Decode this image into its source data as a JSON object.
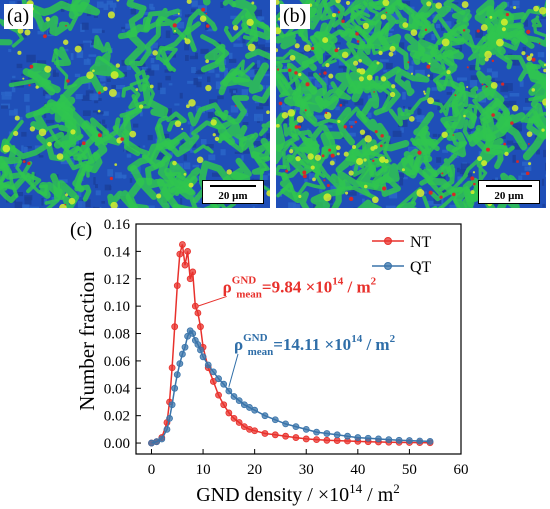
{
  "panels": [
    {
      "label": "(a)",
      "scalebar": "20 μm"
    },
    {
      "label": "(b)",
      "scalebar": "20 μm"
    }
  ],
  "colors": {
    "NT": "#e8312c",
    "QT": "#3a74aa",
    "NT_annotation": "#e8312c",
    "QT_annotation": "#2f6ea8",
    "map_blue": "#1f4fb8",
    "map_green": "#2fc54f",
    "map_yellow": "#d8f02a",
    "map_red": "#d62828"
  },
  "chart_data": {
    "type": "line",
    "panel_label": "(c)",
    "xlabel": "GND density / ×10",
    "xlabel_sup": "14",
    "xlabel_tail": " / m",
    "xlabel_tail_sup": "2",
    "ylabel": "Number fraction",
    "xlim": [
      -3,
      60
    ],
    "ylim": [
      -0.008,
      0.16
    ],
    "xticks": [
      0,
      10,
      20,
      30,
      40,
      50,
      60
    ],
    "yticks": [
      "0.00",
      "0.02",
      "0.04",
      "0.06",
      "0.08",
      "0.10",
      "0.12",
      "0.14",
      "0.16"
    ],
    "legend_position": "top-right",
    "series": [
      {
        "name": "NT",
        "x": [
          0,
          1,
          2,
          3,
          3.5,
          4,
          4.5,
          5,
          5.5,
          6,
          6.5,
          7,
          7.5,
          8,
          8.5,
          9,
          9.5,
          10,
          11,
          12,
          13,
          14,
          15,
          16,
          17,
          18,
          19,
          20,
          22,
          24,
          26,
          28,
          30,
          32,
          34,
          36,
          38,
          40,
          42,
          44,
          46,
          48,
          50,
          52,
          54
        ],
        "y": [
          0.0,
          0.001,
          0.004,
          0.015,
          0.03,
          0.055,
          0.085,
          0.115,
          0.138,
          0.145,
          0.13,
          0.14,
          0.12,
          0.125,
          0.1,
          0.095,
          0.085,
          0.07,
          0.055,
          0.045,
          0.035,
          0.028,
          0.022,
          0.018,
          0.015,
          0.012,
          0.01,
          0.009,
          0.007,
          0.006,
          0.005,
          0.004,
          0.003,
          0.0025,
          0.002,
          0.0018,
          0.0015,
          0.0012,
          0.001,
          0.0008,
          0.0006,
          0.0005,
          0.0004,
          0.0003,
          0.0002
        ]
      },
      {
        "name": "QT",
        "x": [
          0,
          1,
          2,
          3,
          3.5,
          4,
          4.5,
          5,
          5.5,
          6,
          6.5,
          7,
          7.5,
          8,
          8.5,
          9,
          9.5,
          10,
          11,
          12,
          13,
          14,
          15,
          16,
          17,
          18,
          19,
          20,
          22,
          24,
          26,
          28,
          30,
          32,
          34,
          36,
          38,
          40,
          42,
          44,
          46,
          48,
          50,
          52,
          54
        ],
        "y": [
          0.0,
          0.001,
          0.003,
          0.01,
          0.018,
          0.028,
          0.04,
          0.05,
          0.058,
          0.065,
          0.07,
          0.078,
          0.082,
          0.08,
          0.075,
          0.072,
          0.068,
          0.063,
          0.057,
          0.052,
          0.047,
          0.043,
          0.038,
          0.034,
          0.031,
          0.028,
          0.026,
          0.024,
          0.02,
          0.017,
          0.014,
          0.012,
          0.01,
          0.008,
          0.007,
          0.006,
          0.005,
          0.004,
          0.0035,
          0.003,
          0.0025,
          0.002,
          0.0018,
          0.0015,
          0.0012
        ]
      }
    ],
    "annotations": [
      {
        "series": "NT",
        "rho": "ρ",
        "sup": "GND",
        "sub": "mean",
        "text": "=9.84 ×10",
        "exp": "14",
        "unit": " / m",
        "unit_sup": "2",
        "arrow_target": [
          9,
          0.1
        ],
        "label_at": [
          13.8,
          0.11
        ]
      },
      {
        "series": "QT",
        "rho": "ρ",
        "sup": "GND",
        "sub": "mean",
        "text": "=14.11 ×10",
        "exp": "14",
        "unit": " / m",
        "unit_sup": "2",
        "arrow_target": [
          15,
          0.041
        ],
        "label_at": [
          16,
          0.068
        ]
      }
    ]
  }
}
